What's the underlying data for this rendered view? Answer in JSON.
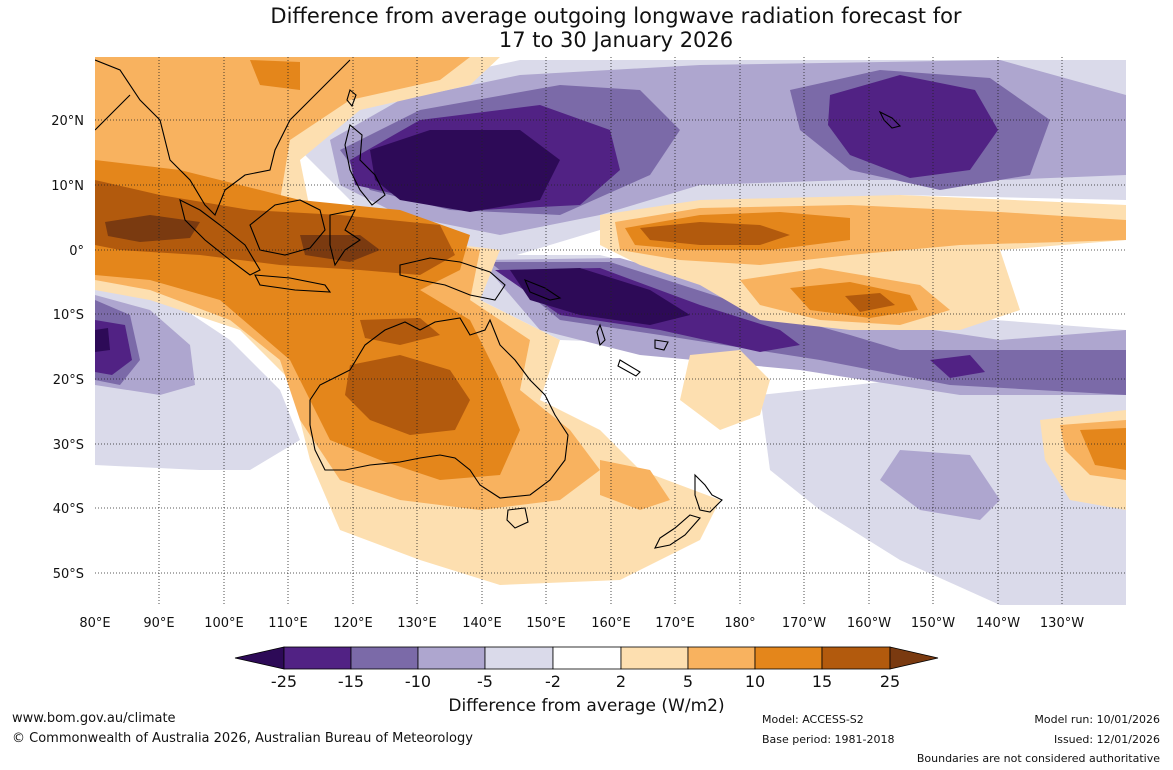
{
  "title": {
    "line1": "Difference from average outgoing longwave radiation forecast for",
    "line2": "17 to 30 January 2026"
  },
  "map": {
    "lon_labels": [
      "80°E",
      "90°E",
      "100°E",
      "110°E",
      "120°E",
      "130°E",
      "140°E",
      "150°E",
      "160°E",
      "170°E",
      "180°",
      "170°W",
      "160°W",
      "150°W",
      "140°W",
      "130°W"
    ],
    "lat_labels": [
      "20°N",
      "10°N",
      "0°",
      "10°S",
      "20°S",
      "30°S",
      "40°S",
      "50°S"
    ]
  },
  "colorbar": {
    "ticks": [
      "-25",
      "-15",
      "-10",
      "-5",
      "-2",
      "2",
      "5",
      "10",
      "15",
      "25"
    ],
    "colors": [
      "#2d0a57",
      "#512284",
      "#7b6aa8",
      "#aea6cf",
      "#dadaea",
      "#ffffff",
      "#fddfb0",
      "#f8b25f",
      "#e4861b",
      "#b25a0d",
      "#7a3a10"
    ],
    "label": "Difference from average (W/m2)"
  },
  "footer": {
    "url": "www.bom.gov.au/climate",
    "copyright": "© Commonwealth of Australia 2026, Australian Bureau of Meteorology",
    "model": "Model: ACCESS-S2",
    "base_period": "Base period: 1981-2018",
    "model_run": "Model run: 10/01/2026",
    "issued": "Issued: 12/01/2026",
    "disclaimer": "Boundaries are not considered authoritative"
  }
}
